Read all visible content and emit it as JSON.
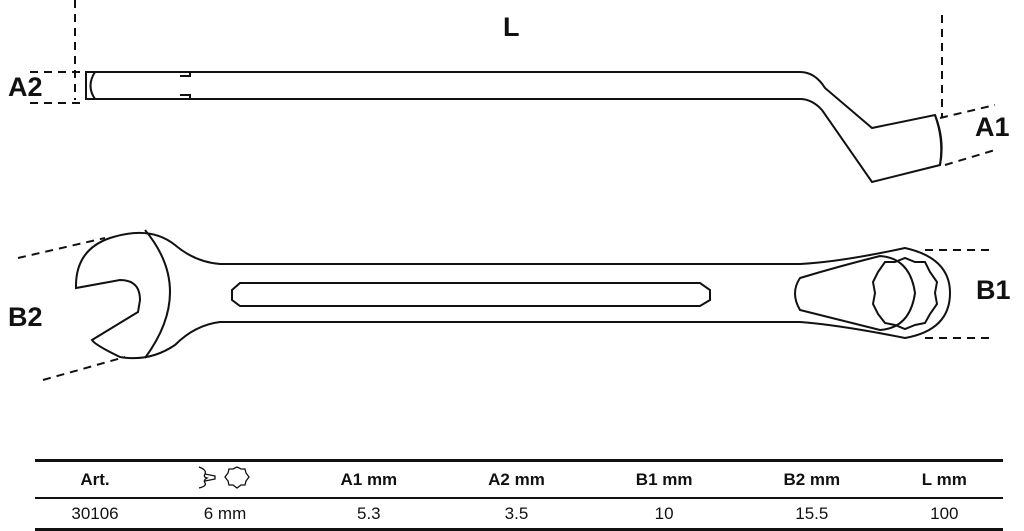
{
  "dimensions": {
    "L": "L",
    "A1": "A1",
    "A2": "A2",
    "B1": "B1",
    "B2": "B2"
  },
  "table": {
    "headers": [
      "Art.",
      "",
      "A1  mm",
      "A2  mm",
      "B1  mm",
      "B2  mm",
      "L  mm"
    ],
    "header_icons": [
      "open-end-wrench-icon",
      "twelve-point-ring-icon"
    ],
    "rows": [
      [
        "30106",
        "6 mm",
        "5.3",
        "3.5",
        "10",
        "15.5",
        "100"
      ]
    ]
  }
}
